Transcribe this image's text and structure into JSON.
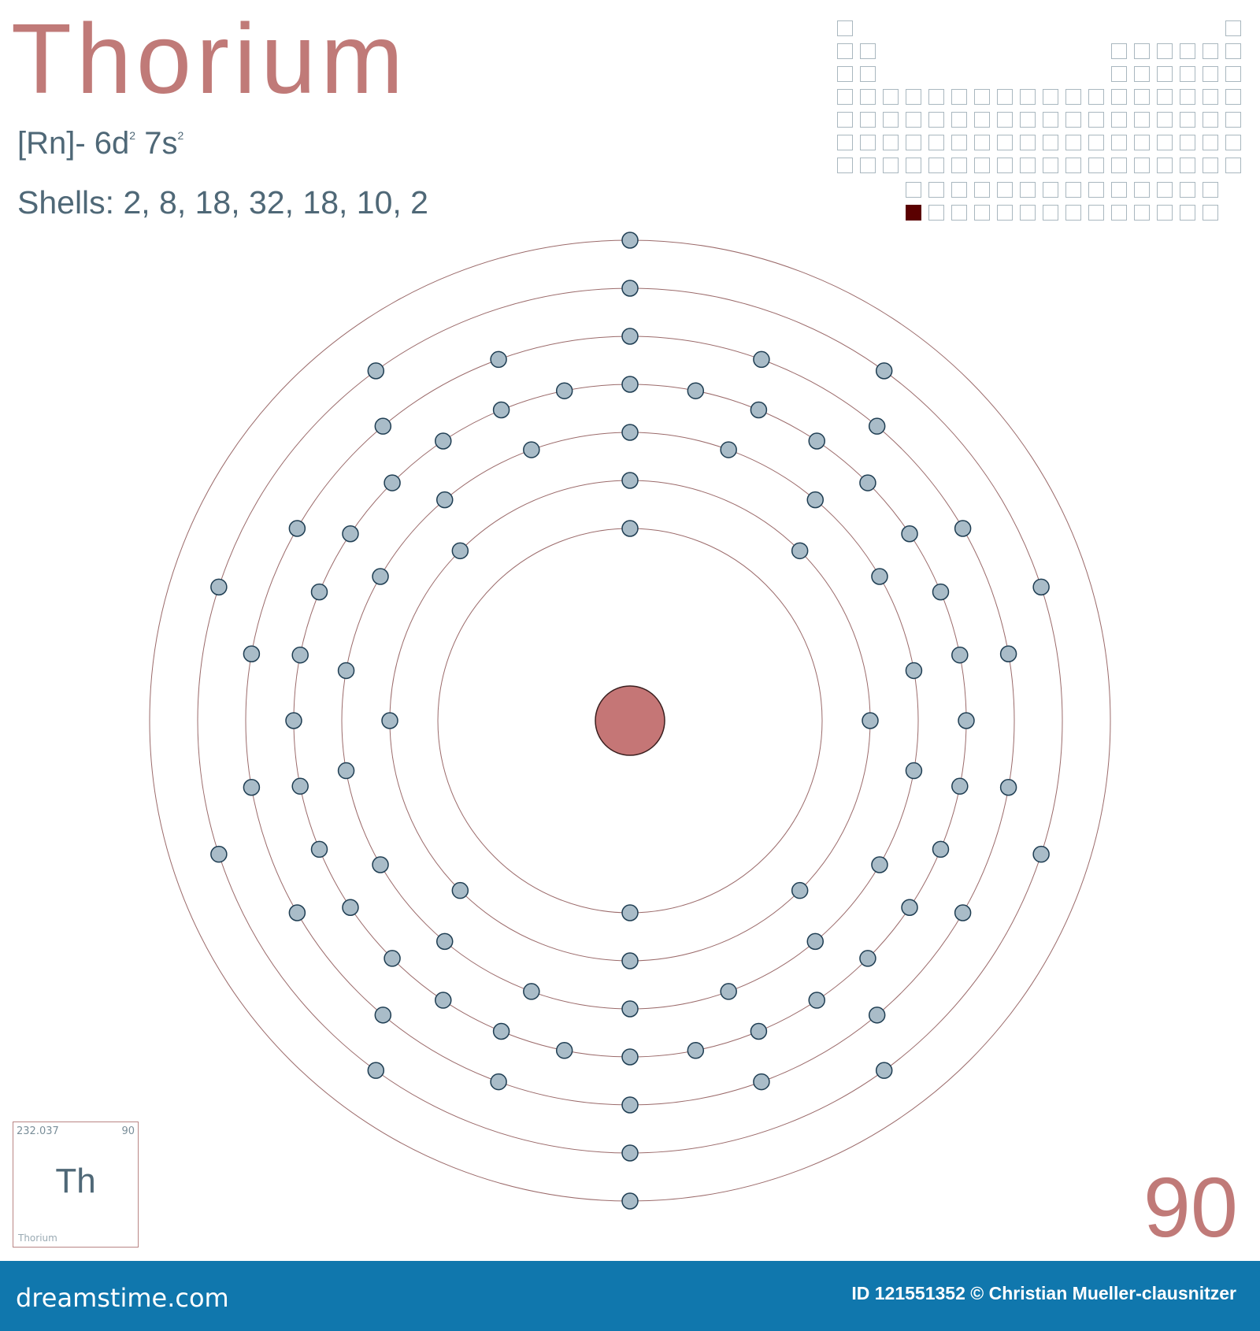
{
  "element": {
    "name": "Thorium",
    "symbol": "Th",
    "atomic_number": "90",
    "atomic_mass": "232.037",
    "config_prefix": "[Rn]- 6d",
    "config_sup1": "2",
    "config_mid": " 7s",
    "config_sup2": "2",
    "shells_text": "Shells: 2, 8, 18, 32, 18, 10, 2",
    "shells": [
      2,
      8,
      18,
      32,
      18,
      10,
      2
    ]
  },
  "periodic_table": {
    "highlight": "first cell of actinide row",
    "colors": {
      "cell_border": "#a9b7bf",
      "highlight": "#5a0000"
    }
  },
  "colors": {
    "title": "#c07a78",
    "text": "#4f6877",
    "nucleus": "#c57676",
    "electron": "#a9bcc8",
    "electron_stroke": "#1e3d52",
    "orbit": "#9b6a6a",
    "footer": "#1077ad"
  },
  "footer": {
    "brand": "dreamstime.com",
    "credit": "ID 121551352 © Christian Mueller-clausnitzer"
  }
}
